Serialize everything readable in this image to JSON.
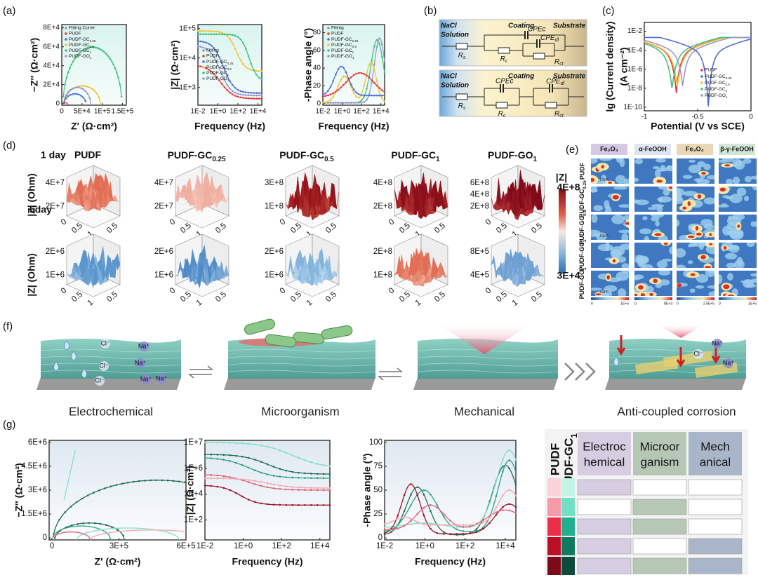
{
  "a": {
    "label": "(a)",
    "plots": [
      {
        "ylabel": "−Z″ (Ω·cm²)",
        "xlabel": "Z′ (Ω·cm²)",
        "yticks": [
          "0",
          "2E+4",
          "4E+4",
          "6E+4",
          "8E+4"
        ],
        "xticks": [
          "0",
          "5E+4",
          "1E+5",
          "1.5E+5"
        ],
        "legend": [
          "Fitting Curve",
          "PUDF",
          {
            "text": "PUDF-GC",
            "sub": "0.25"
          },
          {
            "text": "PUDF-GC",
            "sub": "0.5"
          },
          {
            "text": "PUDF-GC",
            "sub": "1"
          },
          {
            "text": "PUDF-GO",
            "sub": "1"
          }
        ]
      },
      {
        "ylabel": "|Z| (Ω·cm²)",
        "xlabel": "Frequency (Hz)",
        "yticks": [
          "1E+3",
          "1E+4",
          "1E+5"
        ],
        "xticks": [
          "1E-2",
          "1E+0",
          "1E+2",
          "1E+4"
        ],
        "legend": [
          "Fitting",
          "PUDF",
          {
            "text": "PUDF-GC",
            "sub": "0.25"
          },
          {
            "text": "PUDF-GC",
            "sub": "0.5"
          },
          {
            "text": "PUDF-GC",
            "sub": "1"
          },
          {
            "text": "PUDF-GO",
            "sub": "1"
          }
        ]
      },
      {
        "ylabel": "-Phase angle (°)",
        "xlabel": "Frequency (Hz)",
        "yticks": [
          "0",
          "20",
          "40",
          "60",
          "80"
        ],
        "xticks": [
          "1E-2",
          "1E+0",
          "1E+2",
          "1E+4"
        ],
        "legend": [
          "Fitting",
          "PUDF",
          {
            "text": "PUDF-GC",
            "sub": "0.25"
          },
          {
            "text": "PUDF-GC",
            "sub": "0.5"
          },
          {
            "text": "PUDF-GC",
            "sub": "1"
          },
          {
            "text": "PUDF-GO",
            "sub": "1"
          }
        ]
      }
    ]
  },
  "b": {
    "label": "(b)",
    "circuits": [
      {
        "medium": "NaCl",
        "solution": "Solution",
        "coating": "Coating",
        "substrate": "Substrate",
        "rs": {
          "text": "R",
          "sub": "s"
        },
        "cpec": "CPEc",
        "cpedl": {
          "text": "CPE",
          "sub": "dl"
        },
        "rc": {
          "text": "R",
          "sub": "c"
        },
        "rct": {
          "text": "R",
          "sub": "ct"
        }
      },
      {
        "medium": "NaCl",
        "solution": "Solution",
        "coating": "Coating",
        "substrate": "Substrate",
        "rs": {
          "text": "R",
          "sub": "s"
        },
        "cpec": "CPEc",
        "cpedl": {
          "text": "CPE",
          "sub": "dl"
        },
        "rc": {
          "text": "R",
          "sub": "c"
        },
        "rct": {
          "text": "R",
          "sub": "ct"
        }
      }
    ]
  },
  "c": {
    "label": "(c)",
    "ylabel": [
      "lg (Current density)",
      "(A cm⁻²)"
    ],
    "xlabel": "Potential (V vs SCE)",
    "yticks": [
      "1E-10",
      "1E-8",
      "1E-6",
      "1E-4",
      "1E-2"
    ],
    "xticks": [
      "-1",
      "-0.5",
      "0"
    ],
    "legend": [
      "PUDF",
      {
        "text": "PUDF-GC",
        "sub": "0.25"
      },
      {
        "text": "PUDF-GC",
        "sub": "0.5"
      },
      {
        "text": "PUDF-GC",
        "sub": "1"
      },
      {
        "text": "PUDF-GO",
        "sub": "1"
      }
    ]
  },
  "d": {
    "label": "(d)",
    "rows": [
      "1 day",
      "5day"
    ],
    "ylabel": "|Z| (Ohm)",
    "titles": [
      "PUDF",
      {
        "text": "PUDF-GC",
        "sub": "0.25"
      },
      {
        "text": "PUDF-GC",
        "sub": "0.5"
      },
      {
        "text": "PUDF-GC",
        "sub": "1"
      },
      {
        "text": "PUDF-GO",
        "sub": "1"
      }
    ],
    "zticks": [
      [
        [
          "2E+7",
          "4E+7"
        ],
        [
          "2E+7",
          "4E+7"
        ],
        [
          "1E+8",
          "3E+8"
        ],
        [
          "2E+8",
          "4E+8"
        ],
        [
          "2E+8",
          "4E+8",
          "6E+8"
        ]
      ],
      [
        [
          "1E+6",
          "2E+6"
        ],
        [
          "1E+6",
          "2E+6"
        ],
        [
          "1E+6",
          "2E+6"
        ],
        [
          "1E+8",
          "2E+8"
        ],
        [
          "4E+5",
          "8E+5"
        ]
      ]
    ],
    "floor_ticks": [
      "0",
      "0.5",
      "1",
      "0.5"
    ],
    "colorbar": {
      "title": "|Z|",
      "max": "4E+8",
      "min": "3E+4"
    }
  },
  "e": {
    "label": "(e)",
    "columns": [
      "Fe₂O₃",
      "α-FeOOH",
      "Fe₃O₄",
      "β-γ-FeOOH"
    ],
    "rows": [
      "PUDF",
      {
        "text": "PUDF-GC",
        "sub": "0.25"
      },
      {
        "text": "PUDF-GC",
        "sub": "0.5"
      },
      {
        "text": "PUDF-GC",
        "sub": "1"
      },
      {
        "text": "PUDF-GO",
        "sub": "1"
      }
    ],
    "scale": "10μm",
    "colorbars": [
      [
        "0",
        "1E+5"
      ],
      [
        "0",
        "8E+3"
      ],
      [
        "0",
        "2.5E+5"
      ],
      [
        "0",
        "1E+5"
      ]
    ]
  },
  "f": {
    "label": "(f)",
    "scenes": [
      "Electrochemical",
      "Microorganism",
      "Mechanical",
      "Anti-coupled corrosion"
    ],
    "cl": "Cl⁻",
    "na": "Na⁺"
  },
  "g": {
    "label": "(g)",
    "plots": [
      {
        "ylabel": "−Z″ (Ω·cm²)",
        "xlabel": "Z′ (Ω·cm²)",
        "yticks": [
          "0",
          "1.5E+6",
          "3E+6",
          "4.5E+6",
          "6E+6"
        ],
        "xticks": [
          "0",
          "3E+5",
          "6E+5"
        ]
      },
      {
        "ylabel": "|Z| (Ω·cm²)",
        "xlabel": "Frequency (Hz)",
        "yticks": [
          "1E+2",
          "1E+4",
          "1E+6",
          "1E+7"
        ],
        "xticks": [
          "1E-2",
          "1E+0",
          "1E+2",
          "1E+4"
        ]
      },
      {
        "ylabel": "-Phase angle (°)",
        "xlabel": "Frequency (Hz)",
        "yticks": [
          "0",
          "25",
          "50",
          "75",
          "100"
        ],
        "xticks": [
          "1E-2",
          "1E+0",
          "1E+2",
          "1E+4"
        ]
      }
    ],
    "table": {
      "row_heads": [
        "PUDF",
        {
          "text": "PUDF-GC",
          "sub": "1"
        }
      ],
      "columns": [
        [
          "Electroc",
          "hemical"
        ],
        [
          "Microor",
          "ganism"
        ],
        [
          "Mech",
          "anical"
        ]
      ],
      "cell_colors": [
        [
          "#d7cde2",
          "#ffffff",
          "#ffffff"
        ],
        [
          "#ffffff",
          "#b7c7b6",
          "#ffffff"
        ],
        [
          "#d7cde2",
          "#b7c7b6",
          "#ffffff"
        ],
        [
          "#d7cde2",
          "#ffffff",
          "#a9b6ca"
        ],
        [
          "#d7cde2",
          "#b7c7b6",
          "#a9b6ca"
        ]
      ]
    }
  }
}
